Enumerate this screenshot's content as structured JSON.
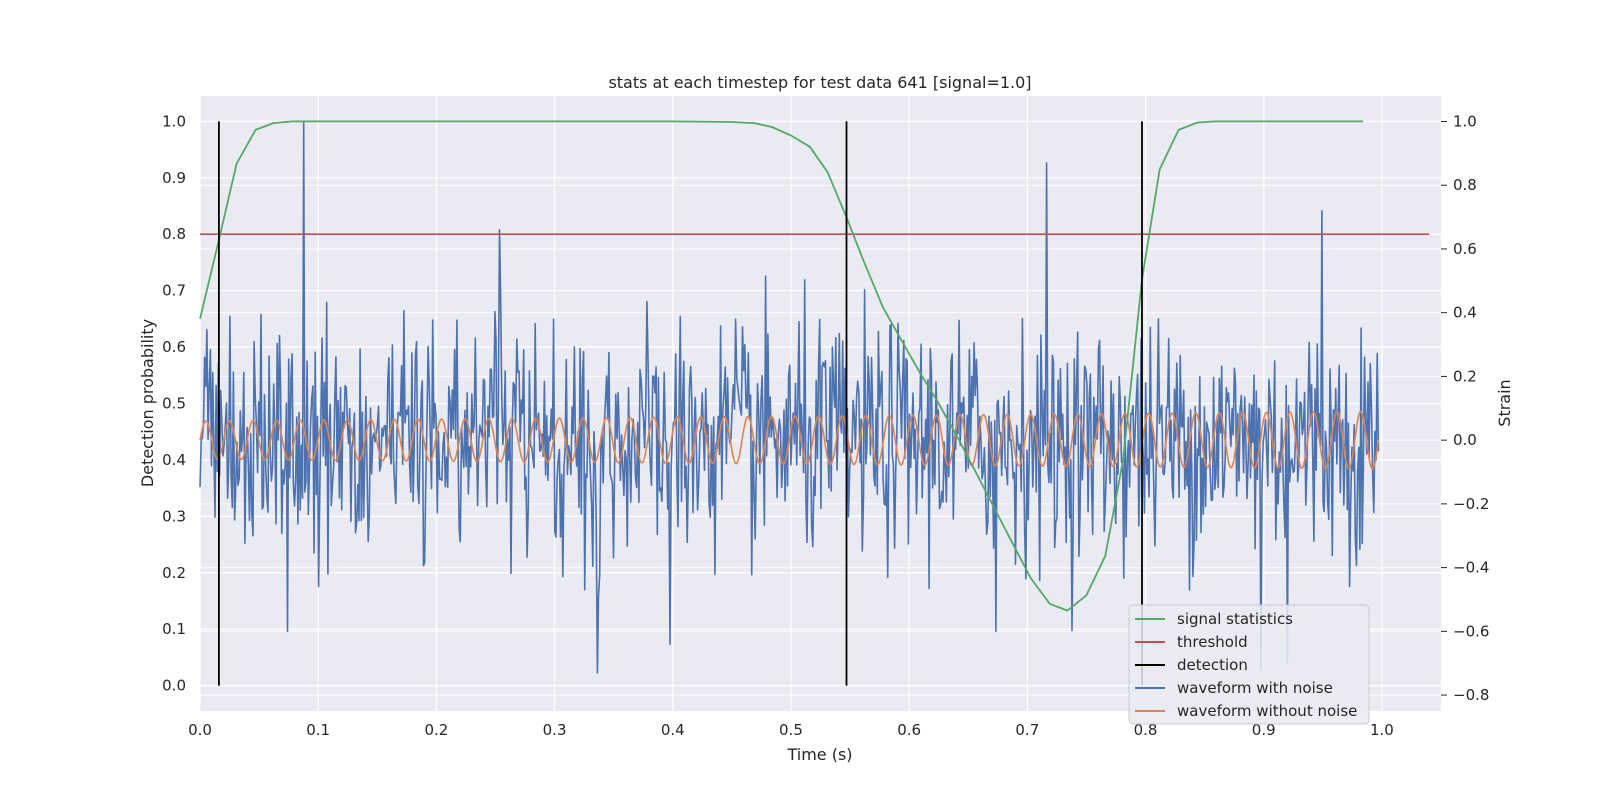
{
  "chart_data": {
    "type": "line",
    "title": "stats at each timestep for test data 641 [signal=1.0]",
    "xlabel": "Time (s)",
    "ylabel_left": "Detection probability",
    "ylabel_right": "Strain",
    "xlim": [
      0.0,
      1.05
    ],
    "ylim_left": [
      -0.045,
      1.045
    ],
    "ylim_right": [
      -0.85,
      1.08
    ],
    "x_ticks": [
      "0.0",
      "0.1",
      "0.2",
      "0.3",
      "0.4",
      "0.5",
      "0.6",
      "0.7",
      "0.8",
      "0.9",
      "1.0"
    ],
    "x_tick_values": [
      0.0,
      0.1,
      0.2,
      0.3,
      0.4,
      0.5,
      0.6,
      0.7,
      0.8,
      0.9,
      1.0
    ],
    "y_left_ticks": [
      "0.0",
      "0.1",
      "0.2",
      "0.3",
      "0.4",
      "0.5",
      "0.6",
      "0.7",
      "0.8",
      "0.9",
      "1.0"
    ],
    "y_left_tick_values": [
      0.0,
      0.1,
      0.2,
      0.3,
      0.4,
      0.5,
      0.6,
      0.7,
      0.8,
      0.9,
      1.0
    ],
    "y_right_ticks": [
      "1.0",
      "0.8",
      "0.6",
      "0.4",
      "0.2",
      "0.0",
      "−0.2",
      "−0.4",
      "−0.6",
      "−0.8"
    ],
    "y_right_tick_values": [
      1.0,
      0.8,
      0.6,
      0.4,
      0.2,
      0.0,
      -0.2,
      -0.4,
      -0.6,
      -0.8
    ],
    "grid": true,
    "background": "#eaeaf2",
    "legend_position": "lower-right",
    "series": [
      {
        "name": "signal statistics",
        "axis": "left",
        "color": "#55a868",
        "x": [
          0.0,
          0.016,
          0.031,
          0.047,
          0.062,
          0.078,
          0.094,
          0.2,
          0.3,
          0.4,
          0.45,
          0.469,
          0.484,
          0.5,
          0.516,
          0.531,
          0.547,
          0.562,
          0.578,
          0.594,
          0.609,
          0.625,
          0.641,
          0.656,
          0.672,
          0.688,
          0.703,
          0.719,
          0.734,
          0.75,
          0.766,
          0.781,
          0.797,
          0.812,
          0.828,
          0.844,
          0.859,
          0.875,
          0.9,
          0.95,
          0.984
        ],
        "y": [
          0.65,
          0.79,
          0.925,
          0.985,
          0.997,
          1.0,
          1.0,
          1.0,
          1.0,
          1.0,
          0.999,
          0.997,
          0.99,
          0.975,
          0.955,
          0.91,
          0.83,
          0.75,
          0.67,
          0.61,
          0.555,
          0.5,
          0.44,
          0.38,
          0.315,
          0.25,
          0.19,
          0.145,
          0.133,
          0.16,
          0.23,
          0.4,
          0.72,
          0.915,
          0.985,
          0.998,
          1.0,
          1.0,
          1.0,
          1.0,
          1.0
        ]
      },
      {
        "name": "threshold",
        "axis": "left",
        "color": "#c44e52",
        "x": [
          0.0,
          1.04
        ],
        "y": [
          0.8,
          0.8
        ]
      },
      {
        "name": "detection",
        "axis": "left",
        "color": "#000000",
        "x": [
          0.016,
          0.547,
          0.797
        ],
        "y_range": [
          0.0,
          1.0
        ]
      },
      {
        "name": "waveform with noise",
        "axis": "right",
        "color": "#4c72b0",
        "x_range": [
          0.0,
          0.997
        ],
        "y_mean": 0.0,
        "y_std": 0.18,
        "peaks": [
          {
            "x": 0.088,
            "y": 1.0
          },
          {
            "x": 0.716,
            "y": 0.87
          },
          {
            "x": 0.949,
            "y": 0.72
          },
          {
            "x": 0.253,
            "y": 0.66
          },
          {
            "x": 0.336,
            "y": -0.73
          },
          {
            "x": 0.398,
            "y": -0.64
          },
          {
            "x": 0.673,
            "y": -0.6
          },
          {
            "x": 0.898,
            "y": -0.72
          },
          {
            "x": 0.92,
            "y": -0.7
          }
        ]
      },
      {
        "name": "waveform without noise",
        "axis": "right",
        "color": "#dd8452",
        "x_range": [
          0.0,
          0.997
        ],
        "cycles": 50,
        "amplitude_start": 0.06,
        "amplitude_end": 0.09
      }
    ]
  }
}
